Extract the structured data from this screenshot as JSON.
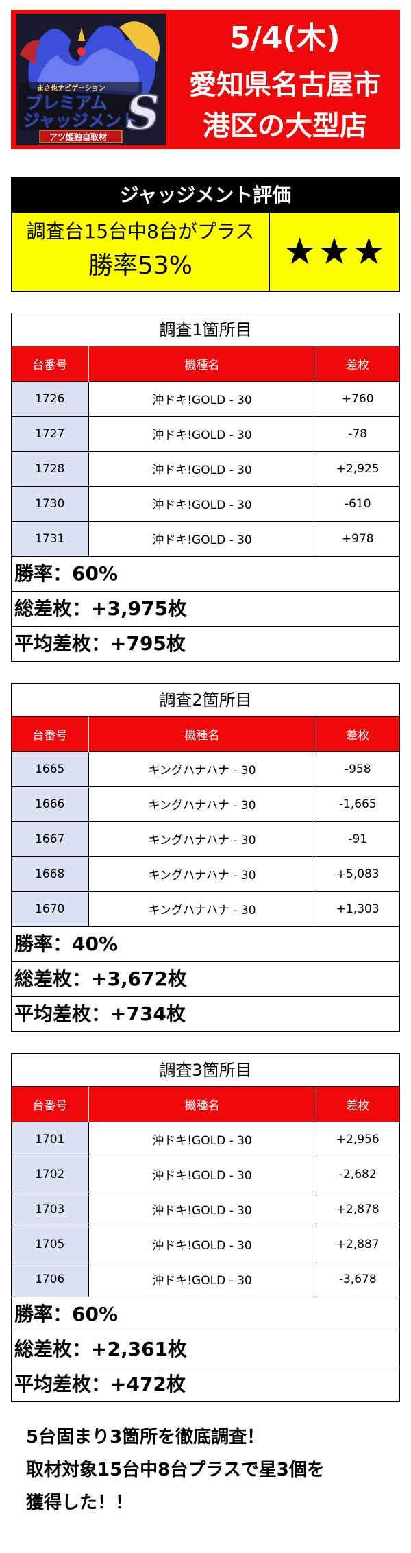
{
  "banner": {
    "logo": {
      "tagline": "まさ也ナビゲーション",
      "title_line1": "プレミアム",
      "title_line2": "ジャッジメント",
      "letter": "S",
      "ribbon": "アツ姫独自取材"
    },
    "date": "5/4(木)",
    "location_line1": "愛知県名古屋市",
    "location_line2": "港区の大型店",
    "colors": {
      "background": "#ee0a0a",
      "text": "#ffffff"
    }
  },
  "evaluation": {
    "heading": "ジャッジメント評価",
    "subtitle": "調査台15台中8台がプラス",
    "win_rate": "勝率53%",
    "stars": "★★★",
    "colors": {
      "header": "#000000",
      "body": "#ffff00"
    }
  },
  "table_headers": {
    "number": "台番号",
    "model": "機種名",
    "diff": "差枚"
  },
  "sections": [
    {
      "title": "調査1箇所目",
      "rows": [
        {
          "number": "1726",
          "model": "沖ドキ!GOLD - 30",
          "diff": "+760"
        },
        {
          "number": "1727",
          "model": "沖ドキ!GOLD - 30",
          "diff": "-78"
        },
        {
          "number": "1728",
          "model": "沖ドキ!GOLD - 30",
          "diff": "+2,925"
        },
        {
          "number": "1730",
          "model": "沖ドキ!GOLD - 30",
          "diff": "-610"
        },
        {
          "number": "1731",
          "model": "沖ドキ!GOLD - 30",
          "diff": "+978"
        }
      ],
      "win_rate": "勝率：60%",
      "total": "総差枚：+3,975枚",
      "average": "平均差枚：+795枚"
    },
    {
      "title": "調査2箇所目",
      "rows": [
        {
          "number": "1665",
          "model": "キングハナハナ - 30",
          "diff": "-958"
        },
        {
          "number": "1666",
          "model": "キングハナハナ - 30",
          "diff": "-1,665"
        },
        {
          "number": "1667",
          "model": "キングハナハナ - 30",
          "diff": "-91"
        },
        {
          "number": "1668",
          "model": "キングハナハナ - 30",
          "diff": "+5,083"
        },
        {
          "number": "1670",
          "model": "キングハナハナ - 30",
          "diff": "+1,303"
        }
      ],
      "win_rate": "勝率：40%",
      "total": "総差枚：+3,672枚",
      "average": "平均差枚：+734枚"
    },
    {
      "title": "調査3箇所目",
      "rows": [
        {
          "number": "1701",
          "model": "沖ドキ!GOLD - 30",
          "diff": "+2,956"
        },
        {
          "number": "1702",
          "model": "沖ドキ!GOLD - 30",
          "diff": "-2,682"
        },
        {
          "number": "1703",
          "model": "沖ドキ!GOLD - 30",
          "diff": "+2,878"
        },
        {
          "number": "1705",
          "model": "沖ドキ!GOLD - 30",
          "diff": "+2,887"
        },
        {
          "number": "1706",
          "model": "沖ドキ!GOLD - 30",
          "diff": "-3,678"
        }
      ],
      "win_rate": "勝率：60%",
      "total": "総差枚：+2,361枚",
      "average": "平均差枚：+472枚"
    }
  ],
  "summary": {
    "line1": "5台固まり3箇所を徹底調査！",
    "line2": "取材対象15台中8台プラスで星3個を",
    "line3": "獲得した！！"
  }
}
